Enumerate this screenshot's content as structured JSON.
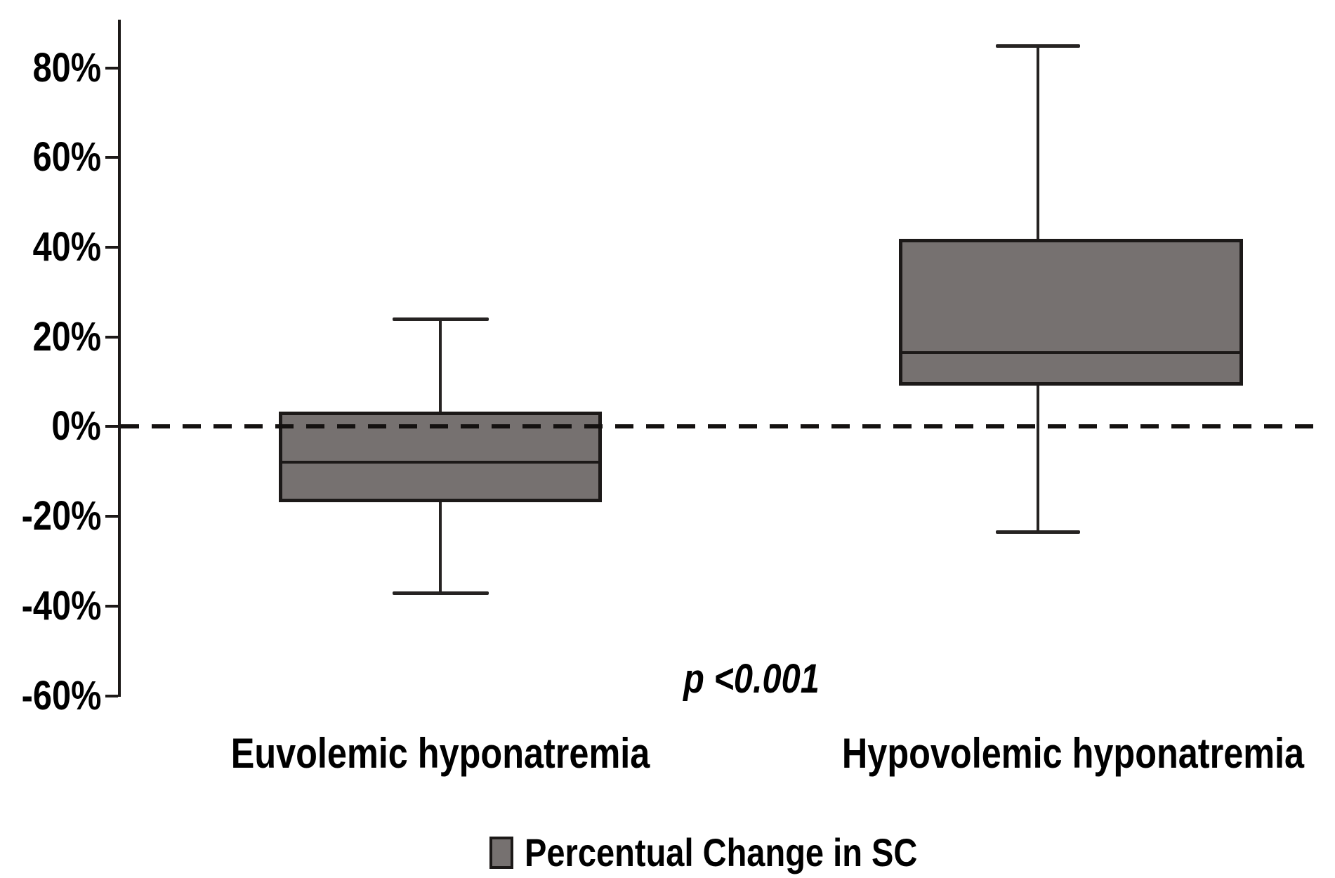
{
  "chart_data": {
    "type": "boxplot",
    "title": "",
    "xlabel": "",
    "ylabel": "",
    "unit": "percent",
    "categories": [
      "Euvolemic hyponatremia",
      "Hypovolemic hyponatremia"
    ],
    "series": [
      {
        "name": "Euvolemic hyponatremia",
        "whisker_low": -37,
        "q1": -16.5,
        "median": -8,
        "q3": 3,
        "whisker_high": 24
      },
      {
        "name": "Hypovolemic hyponatremia",
        "whisker_low": -23.5,
        "q1": 9.5,
        "median": 16.5,
        "q3": 41.5,
        "whisker_high": 85
      }
    ],
    "y_axis": {
      "range": [
        -60,
        90
      ],
      "ticks": [
        {
          "label": "80%",
          "value": 80
        },
        {
          "label": "60%",
          "value": 60
        },
        {
          "label": "40%",
          "value": 40
        },
        {
          "label": "20%",
          "value": 20
        },
        {
          "label": "0%",
          "value": 0
        },
        {
          "label": "-20%",
          "value": -20
        },
        {
          "label": "-40%",
          "value": -40
        },
        {
          "label": "-60%",
          "value": -60
        }
      ]
    },
    "reference_line": {
      "value": 0,
      "style": "dashed"
    },
    "annotation": {
      "text": "p <0.001"
    },
    "legend": {
      "label": "Percentual Change in SC",
      "position": "bottom"
    },
    "layout_hints": {
      "grid": false
    },
    "colors": {
      "box_fill": "#767170",
      "box_border": "#1c1918",
      "line": "#262322",
      "text": "#000000",
      "background": "#ffffff"
    }
  }
}
